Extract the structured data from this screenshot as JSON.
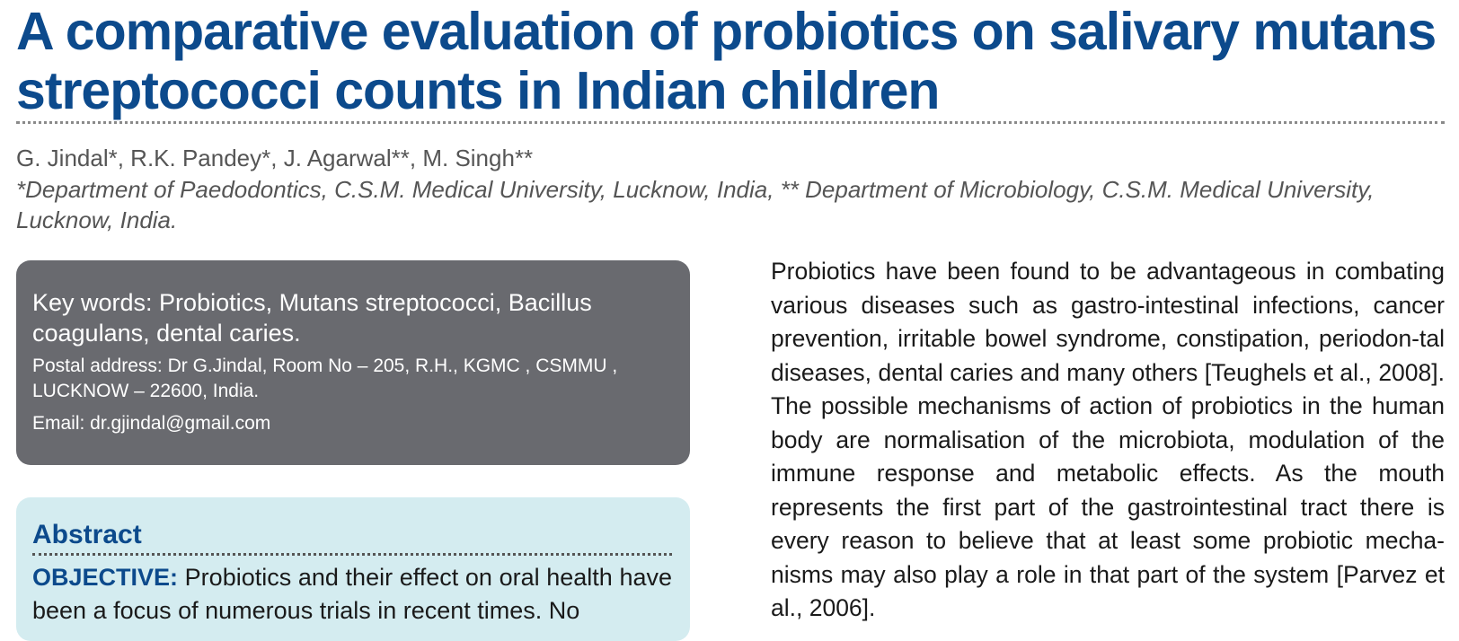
{
  "title": "A comparative evaluation of probiotics on salivary mutans streptococci counts in Indian children",
  "authors": "G. Jindal*, R.K. Pandey*, J. Agarwal**, M. Singh**",
  "affiliations": "*Department of Paedodontics, C.S.M. Medical University, Lucknow, India, ** Department of Microbiology, C.S.M. Medical University, Lucknow, India.",
  "info_box": {
    "keywords": "Key words: Probiotics, Mutans streptococci, Bacillus coagulans, dental caries.",
    "postal_address": "Postal address: Dr G.Jindal, Room No – 205, R.H., KGMC , CSMMU , LUCKNOW – 22600, India.",
    "email": "Email: dr.gjindal@gmail.com"
  },
  "abstract": {
    "heading": "Abstract",
    "objective_label": "OBJECTIVE:",
    "objective_text": " Probiotics and their effect on oral health have been a focus of numerous trials in recent times. No"
  },
  "body_text": "Probiotics have been found to be advantageous in combating various diseases such as gastro-intestinal infections, cancer prevention, irritable bowel syndrome, constipation, periodon-tal diseases, dental caries and many others [Teughels et al., 2008]. The possible mechanisms of action of probiotics in the human body are normalisation of the microbiota, modulation of the immune response and metabolic effects. As the mouth represents the first part of the gastrointestinal tract there is every reason to believe that at least some probiotic mecha-nisms may also play a role in that part of the system [Parvez et al., 2006].",
  "colors": {
    "title": "#0c4a8c",
    "info_box_bg": "#696a6f",
    "abstract_bg": "#d4ecf0"
  }
}
